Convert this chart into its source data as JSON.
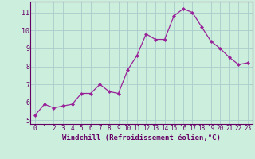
{
  "x": [
    0,
    1,
    2,
    3,
    4,
    5,
    6,
    7,
    8,
    9,
    10,
    11,
    12,
    13,
    14,
    15,
    16,
    17,
    18,
    19,
    20,
    21,
    22,
    23
  ],
  "y": [
    5.3,
    5.9,
    5.7,
    5.8,
    5.9,
    6.5,
    6.5,
    7.0,
    6.6,
    6.5,
    7.8,
    8.6,
    9.8,
    9.5,
    9.5,
    10.8,
    11.2,
    11.0,
    10.2,
    9.4,
    9.0,
    8.5,
    8.1,
    8.2
  ],
  "line_color": "#992299",
  "marker": "D",
  "marker_size": 2,
  "bg_color": "#cceedd",
  "grid_color": "#aacccc",
  "xlabel": "Windchill (Refroidissement éolien,°C)",
  "ylim": [
    4.8,
    11.6
  ],
  "xlim": [
    -0.5,
    23.5
  ],
  "yticks": [
    5,
    6,
    7,
    8,
    9,
    10,
    11
  ],
  "xticks": [
    0,
    1,
    2,
    3,
    4,
    5,
    6,
    7,
    8,
    9,
    10,
    11,
    12,
    13,
    14,
    15,
    16,
    17,
    18,
    19,
    20,
    21,
    22,
    23
  ],
  "tick_color": "#660066",
  "xlabel_fontsize": 6.5,
  "tick_fontsize": 5.5
}
